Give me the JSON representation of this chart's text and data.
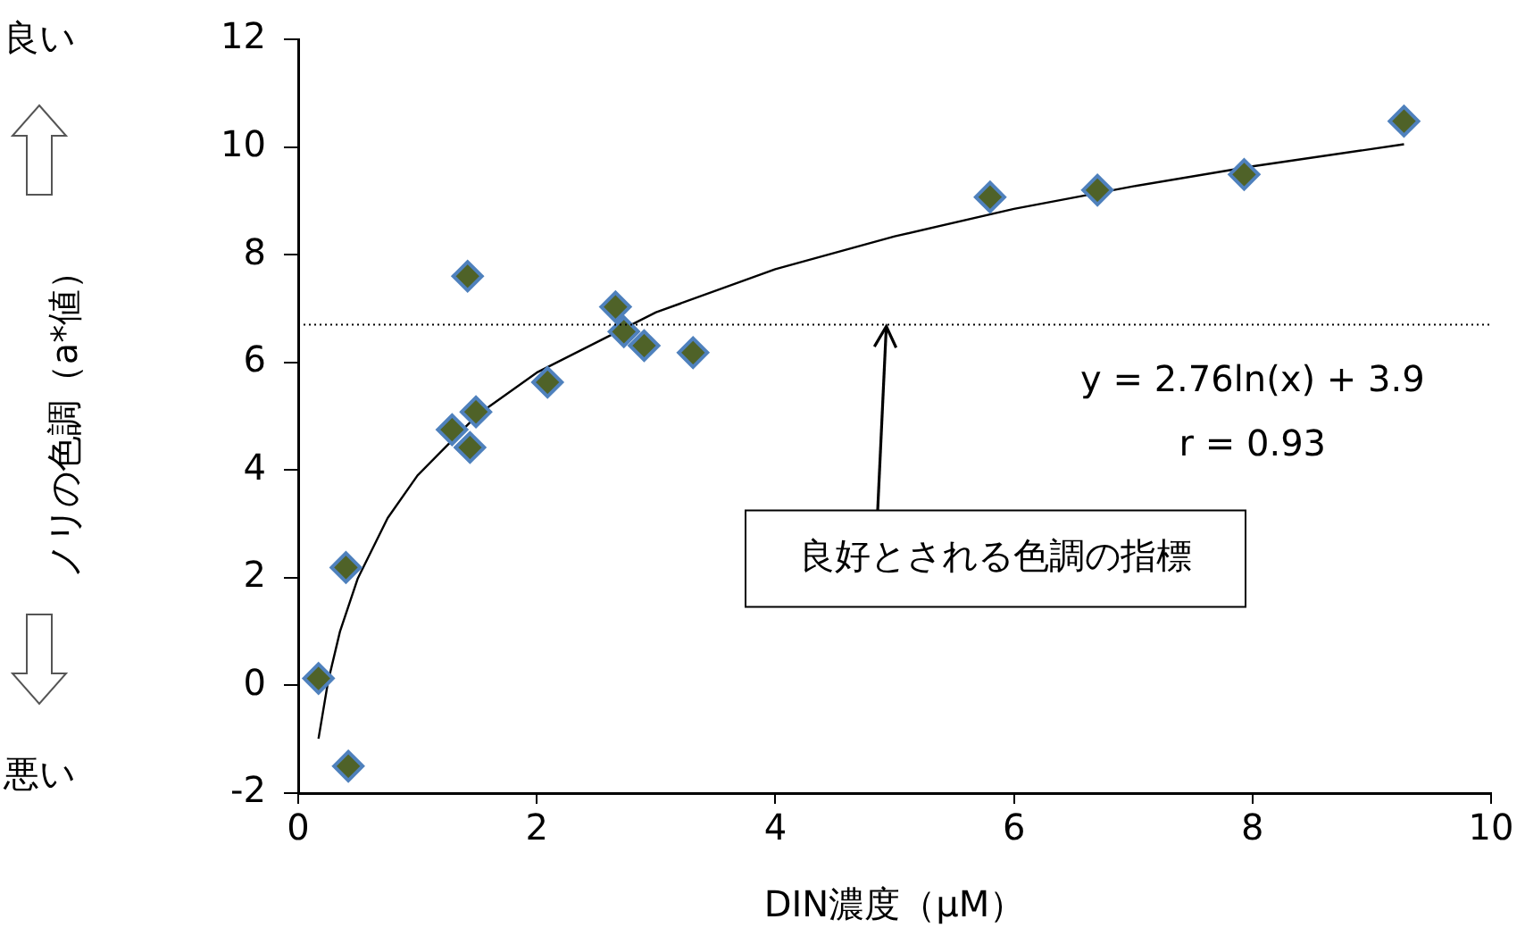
{
  "chart_data": {
    "type": "scatter",
    "xlabel": "DIN濃度（μM）",
    "ylabel": "ノリの色調（a*値）",
    "xlim": [
      0,
      10
    ],
    "xticks": [
      0,
      2,
      4,
      6,
      8,
      10
    ],
    "ylim": [
      -2,
      12
    ],
    "yticks": [
      -2,
      0,
      2,
      4,
      6,
      8,
      10,
      12
    ],
    "grid": false,
    "legend": false,
    "marker": "diamond",
    "series": [
      {
        "color": "#4f6228",
        "x": [
          0.17,
          0.4,
          0.42,
          1.42,
          1.29,
          1.44,
          1.49,
          2.09,
          2.66,
          2.73,
          2.9,
          3.31,
          5.8,
          6.7,
          7.93,
          9.27
        ],
        "values": [
          0.13,
          2.19,
          -1.5,
          7.6,
          4.75,
          4.42,
          5.08,
          5.63,
          7.03,
          6.57,
          6.31,
          6.18,
          9.07,
          9.2,
          9.49,
          10.48
        ]
      },
      {
        "type": "line",
        "color": "#000000",
        "marker": "none",
        "line_style": "solid",
        "x": [
          0.17,
          0.25,
          0.35,
          0.5,
          0.75,
          1,
          1.5,
          2,
          3,
          4,
          5,
          6,
          7,
          8,
          9.27
        ],
        "values": [
          -0.99,
          0.07,
          1.0,
          1.99,
          3.11,
          3.9,
          5.02,
          5.81,
          6.93,
          7.73,
          8.34,
          8.85,
          9.27,
          9.64,
          10.05
        ]
      }
    ],
    "ref_lines": [
      {
        "axis": "y",
        "value": 6.7,
        "color": "#000000",
        "line_style": "dotted"
      }
    ],
    "annotations": [
      "y = 2.76ln(x) + 3.9",
      "r = 0.93",
      {
        "text": "良好とされる色調の指標",
        "x": 4.93,
        "y": 6.7
      },
      "良い",
      "悪い"
    ]
  }
}
